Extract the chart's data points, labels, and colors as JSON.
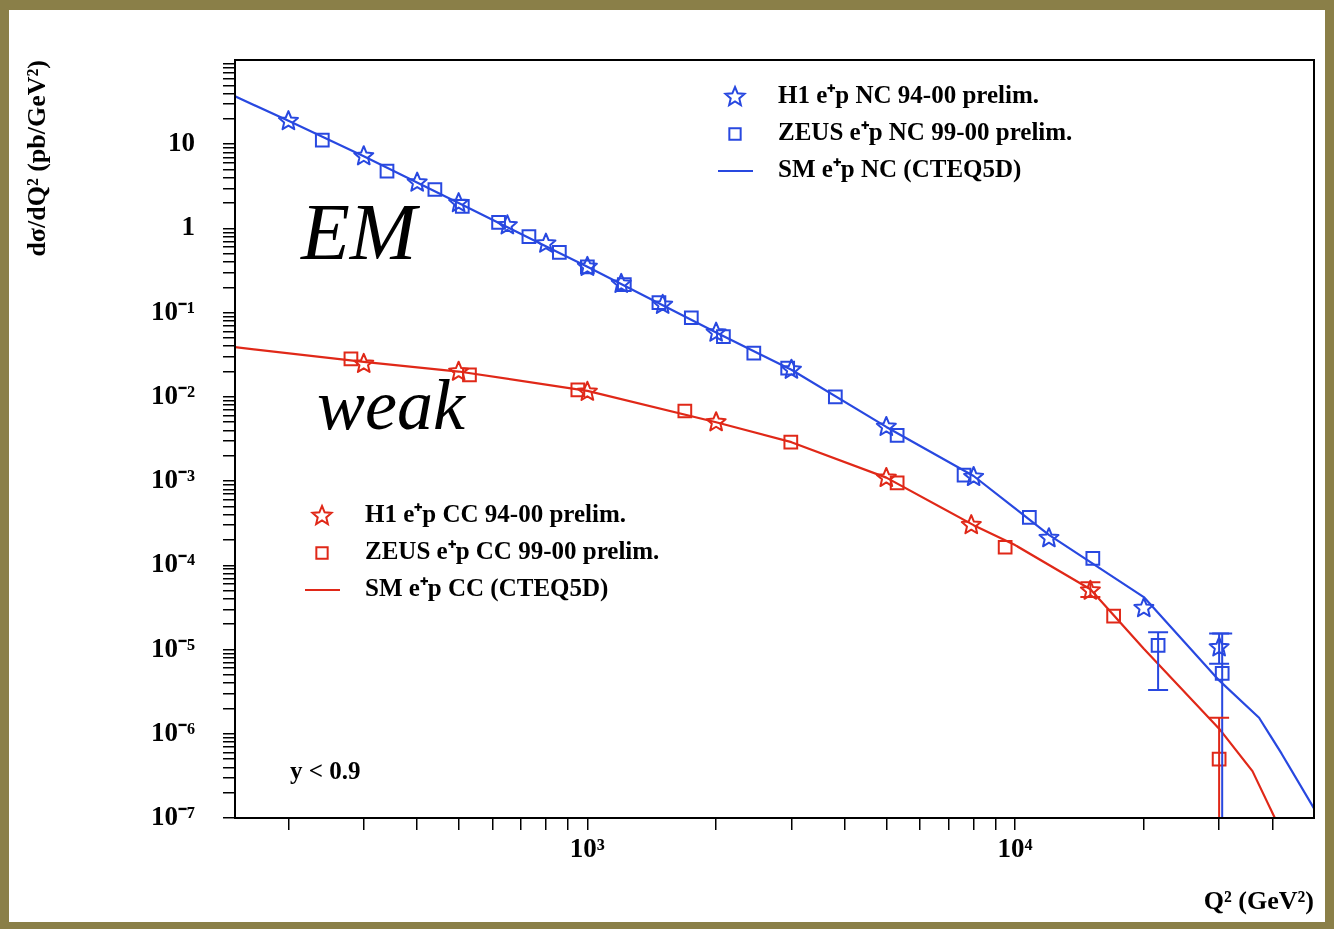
{
  "chart_data": {
    "type": "scatter",
    "xlabel": "Q² (GeV²)",
    "ylabel": "dσ/dQ² (pb/GeV²)",
    "log": "xy",
    "legend": "top left",
    "grid": false,
    "xlim": [
      150,
      50000
    ],
    "xticks": [
      {
        "value": 200,
        "label": null
      },
      {
        "value": 300,
        "label": null
      },
      {
        "value": 400,
        "label": null
      },
      {
        "value": 500,
        "label": null
      },
      {
        "value": 600,
        "label": null
      },
      {
        "value": 700,
        "label": null
      },
      {
        "value": 800,
        "label": null
      },
      {
        "value": 900,
        "label": null
      },
      {
        "value": 1000,
        "label": "10³"
      },
      {
        "value": 2000,
        "label": null
      },
      {
        "value": 3000,
        "label": null
      },
      {
        "value": 4000,
        "label": null
      },
      {
        "value": 5000,
        "label": null
      },
      {
        "value": 6000,
        "label": null
      },
      {
        "value": 7000,
        "label": null
      },
      {
        "value": 8000,
        "label": null
      },
      {
        "value": 9000,
        "label": null
      },
      {
        "value": 10000,
        "label": "10⁴"
      },
      {
        "value": 20000,
        "label": null
      },
      {
        "value": 30000,
        "label": null
      },
      {
        "value": 40000,
        "label": null
      }
    ],
    "ylim": [
      1e-07,
      100
    ],
    "yticks": [
      {
        "value": 1e-07,
        "label": "10⁻⁷"
      },
      {
        "value": 2e-07,
        "label": null
      },
      {
        "value": 3e-07,
        "label": null
      },
      {
        "value": 4e-07,
        "label": null
      },
      {
        "value": 5e-07,
        "label": null
      },
      {
        "value": 6e-07,
        "label": null
      },
      {
        "value": 7e-07,
        "label": null
      },
      {
        "value": 8e-07,
        "label": null
      },
      {
        "value": 9e-07,
        "label": null
      },
      {
        "value": 1e-06,
        "label": "10⁻⁶"
      },
      {
        "value": 2e-06,
        "label": null
      },
      {
        "value": 3e-06,
        "label": null
      },
      {
        "value": 4e-06,
        "label": null
      },
      {
        "value": 5e-06,
        "label": null
      },
      {
        "value": 6e-06,
        "label": null
      },
      {
        "value": 7e-06,
        "label": null
      },
      {
        "value": 8e-06,
        "label": null
      },
      {
        "value": 9e-06,
        "label": null
      },
      {
        "value": 1e-05,
        "label": "10⁻⁵"
      },
      {
        "value": 2e-05,
        "label": null
      },
      {
        "value": 3e-05,
        "label": null
      },
      {
        "value": 4e-05,
        "label": null
      },
      {
        "value": 5e-05,
        "label": null
      },
      {
        "value": 6e-05,
        "label": null
      },
      {
        "value": 7e-05,
        "label": null
      },
      {
        "value": 8e-05,
        "label": null
      },
      {
        "value": 9e-05,
        "label": null
      },
      {
        "value": 0.0001,
        "label": "10⁻⁴"
      },
      {
        "value": 0.0002,
        "label": null
      },
      {
        "value": 0.0003,
        "label": null
      },
      {
        "value": 0.0004,
        "label": null
      },
      {
        "value": 0.0005,
        "label": null
      },
      {
        "value": 0.0006,
        "label": null
      },
      {
        "value": 0.0007,
        "label": null
      },
      {
        "value": 0.0008,
        "label": null
      },
      {
        "value": 0.0009,
        "label": null
      },
      {
        "value": 0.001,
        "label": "10⁻³"
      },
      {
        "value": 0.002,
        "label": null
      },
      {
        "value": 0.003,
        "label": null
      },
      {
        "value": 0.004,
        "label": null
      },
      {
        "value": 0.005,
        "label": null
      },
      {
        "value": 0.006,
        "label": null
      },
      {
        "value": 0.007,
        "label": null
      },
      {
        "value": 0.008,
        "label": null
      },
      {
        "value": 0.009,
        "label": null
      },
      {
        "value": 0.01,
        "label": "10⁻²"
      },
      {
        "value": 0.02,
        "label": null
      },
      {
        "value": 0.03,
        "label": null
      },
      {
        "value": 0.04,
        "label": null
      },
      {
        "value": 0.05,
        "label": null
      },
      {
        "value": 0.06,
        "label": null
      },
      {
        "value": 0.07,
        "label": null
      },
      {
        "value": 0.08,
        "label": null
      },
      {
        "value": 0.09,
        "label": null
      },
      {
        "value": 0.1,
        "label": "10⁻¹"
      },
      {
        "value": 0.2,
        "label": null
      },
      {
        "value": 0.3,
        "label": null
      },
      {
        "value": 0.4,
        "label": null
      },
      {
        "value": 0.5,
        "label": null
      },
      {
        "value": 0.6,
        "label": null
      },
      {
        "value": 0.7,
        "label": null
      },
      {
        "value": 0.8,
        "label": null
      },
      {
        "value": 0.9,
        "label": null
      },
      1,
      {
        "value": 2,
        "label": null
      },
      {
        "value": 3,
        "label": null
      },
      {
        "value": 4,
        "label": null
      },
      {
        "value": 5,
        "label": null
      },
      {
        "value": 6,
        "label": null
      },
      {
        "value": 7,
        "label": null
      },
      {
        "value": 8,
        "label": null
      },
      {
        "value": 9,
        "label": null
      },
      10,
      {
        "value": 20,
        "label": null
      },
      {
        "value": 30,
        "label": null
      },
      {
        "value": 40,
        "label": null
      },
      {
        "value": 50,
        "label": null
      },
      {
        "value": 60,
        "label": null
      },
      {
        "value": 70,
        "label": null
      },
      {
        "value": 80,
        "label": null
      },
      {
        "value": 90,
        "label": null
      }
    ],
    "annotations": [
      "EM",
      "weak",
      "y < 0.9"
    ],
    "series": [
      {
        "name": "H1 e⁺p NC 94-00 prelim.",
        "type": "scatter",
        "marker": "star",
        "color": "#2848e0",
        "x": [
          200,
          300,
          400,
          500,
          650,
          800,
          1000,
          1200,
          1500,
          2000,
          3000,
          5000,
          8000,
          12000,
          20000,
          30000
        ],
        "values": [
          18.8,
          7.2,
          3.5,
          2.0,
          1.09,
          0.66,
          0.35,
          0.22,
          0.124,
          0.058,
          0.021,
          0.0044,
          0.00112,
          0.00021,
          3.1e-05,
          1.06e-05
        ],
        "errors": [
          null,
          null,
          null,
          null,
          null,
          null,
          null,
          null,
          null,
          null,
          null,
          null,
          null,
          null,
          null,
          [
            6.8e-06,
            1.55e-05
          ]
        ]
      },
      {
        "name": "ZEUS e⁺p NC 99-00 prelim.",
        "type": "scatter",
        "marker": "square",
        "color": "#2848e0",
        "x": [
          240,
          340,
          440,
          510,
          620,
          730,
          860,
          1000,
          1220,
          1470,
          1750,
          2080,
          2450,
          2940,
          3800,
          5300,
          7600,
          10800,
          15200,
          21600,
          30500
        ],
        "values": [
          11.2,
          4.8,
          2.9,
          1.83,
          1.18,
          0.8,
          0.52,
          0.35,
          0.215,
          0.132,
          0.087,
          0.052,
          0.033,
          0.022,
          0.01,
          0.0035,
          0.00118,
          0.00037,
          0.000121,
          1.12e-05,
          5.2e-06
        ],
        "errors": [
          null,
          null,
          null,
          null,
          null,
          null,
          null,
          null,
          null,
          null,
          null,
          null,
          null,
          null,
          null,
          null,
          null,
          null,
          null,
          [
            3.3e-06,
            1.6e-05
          ],
          [
            1e-07,
            1.55e-05
          ]
        ]
      },
      {
        "name": "SM e⁺p NC (CTEQ5D)",
        "type": "line",
        "marker": "none",
        "color": "#2848e0",
        "x": [
          150,
          200,
          300,
          500,
          1000,
          2000,
          3000,
          5000,
          8000,
          12000,
          20000,
          30000,
          37200,
          42000,
          50000
        ],
        "values": [
          37,
          19,
          7.2,
          2.0,
          0.35,
          0.058,
          0.021,
          0.0044,
          0.00115,
          0.00023,
          4.2e-05,
          4.3e-06,
          1.55e-06,
          5.8e-07,
          1.3e-07
        ]
      },
      {
        "name": "H1 e⁺p CC 94-00 prelim.",
        "type": "scatter",
        "marker": "star",
        "color": "#e02818",
        "x": [
          300,
          500,
          1000,
          2000,
          5000,
          7900,
          15000
        ],
        "values": [
          0.0247,
          0.0199,
          0.0115,
          0.005,
          0.00109,
          0.0003,
          5e-05
        ],
        "errors": [
          null,
          null,
          null,
          null,
          null,
          null,
          [
            4.2e-05,
            6.3e-05
          ]
        ]
      },
      {
        "name": "ZEUS e⁺p CC 99-00 prelim.",
        "type": "scatter",
        "marker": "square",
        "color": "#e02818",
        "x": [
          280,
          530,
          950,
          1690,
          2990,
          5300,
          9480,
          17000,
          30000
        ],
        "values": [
          0.0283,
          0.0183,
          0.0121,
          0.0068,
          0.0029,
          0.00095,
          0.000164,
          2.5e-05,
          5e-07
        ],
        "errors": [
          null,
          null,
          null,
          null,
          null,
          null,
          null,
          null,
          [
            1e-07,
            1.55e-06
          ]
        ]
      },
      {
        "name": "SM e⁺p CC (CTEQ5D)",
        "type": "line",
        "marker": "none",
        "color": "#e02818",
        "x": [
          150,
          300,
          500,
          1000,
          2000,
          3000,
          5000,
          8000,
          10000,
          15000,
          20000,
          30000,
          35900,
          40500
        ],
        "values": [
          0.039,
          0.026,
          0.02,
          0.0118,
          0.005,
          0.0029,
          0.0011,
          0.0003,
          0.000174,
          5.2e-05,
          1.02e-05,
          1.15e-06,
          3.6e-07,
          1e-07
        ]
      }
    ]
  }
}
